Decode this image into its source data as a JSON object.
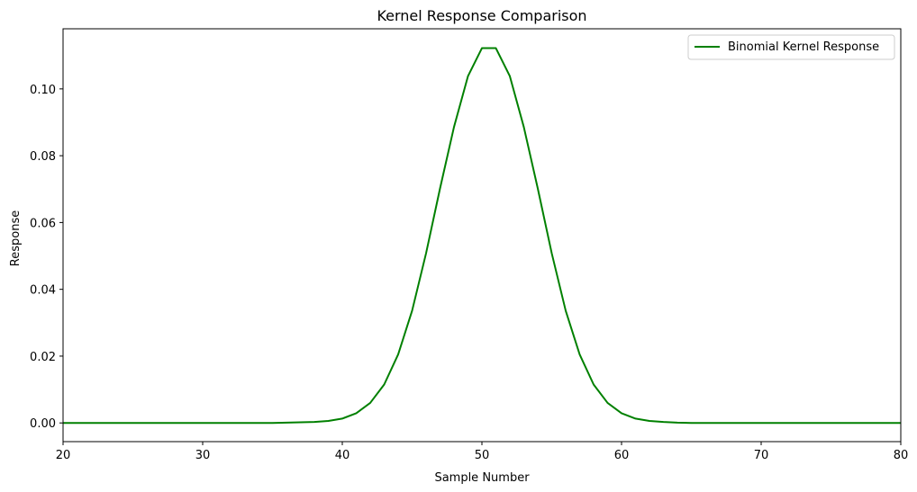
{
  "chart_data": {
    "type": "line",
    "title": "Kernel Response Comparison",
    "xlabel": "Sample Number",
    "ylabel": "Response",
    "xlim": [
      20,
      80
    ],
    "ylim": [
      -0.0056,
      0.118
    ],
    "xticks": [
      20,
      30,
      40,
      50,
      60,
      70,
      80
    ],
    "yticks": [
      0.0,
      0.02,
      0.04,
      0.06,
      0.08,
      0.1
    ],
    "ytick_labels": [
      "0.00",
      "0.02",
      "0.04",
      "0.06",
      "0.08",
      "0.10"
    ],
    "legend_position": "top-right",
    "grid": false,
    "series": [
      {
        "name": "Binomial Kernel Response",
        "color": "#008000",
        "x": [
          20,
          21,
          22,
          23,
          24,
          25,
          26,
          27,
          28,
          29,
          30,
          31,
          32,
          33,
          34,
          35,
          36,
          37,
          38,
          39,
          40,
          41,
          42,
          43,
          44,
          45,
          46,
          47,
          48,
          49,
          50,
          51,
          52,
          53,
          54,
          55,
          56,
          57,
          58,
          59,
          60,
          61,
          62,
          63,
          64,
          65,
          66,
          67,
          68,
          69,
          70,
          71,
          72,
          73,
          74,
          75,
          76,
          77,
          78,
          79,
          80
        ],
        "values": [
          0,
          0,
          0,
          0,
          0,
          0,
          0,
          0,
          0,
          0,
          0,
          0,
          0,
          0,
          0,
          0,
          0.0001,
          0.0002,
          0.0003,
          0.0006,
          0.0013,
          0.0029,
          0.006,
          0.0115,
          0.0205,
          0.0336,
          0.0508,
          0.0702,
          0.0886,
          0.1038,
          0.1122,
          0.1122,
          0.1038,
          0.0886,
          0.0702,
          0.0508,
          0.0336,
          0.0205,
          0.0115,
          0.006,
          0.0029,
          0.0013,
          0.0006,
          0.0003,
          0.0001,
          0,
          0,
          0,
          0,
          0,
          0,
          0,
          0,
          0,
          0,
          0,
          0,
          0,
          0,
          0,
          0
        ]
      }
    ]
  }
}
